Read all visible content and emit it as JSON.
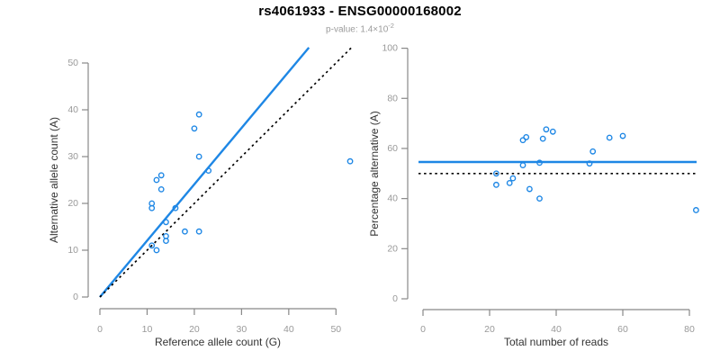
{
  "title": "rs4061933 - ENSG00000168002",
  "subtitle": {
    "text": "p-value: 1.4×10",
    "exponent": "-2"
  },
  "colors": {
    "points": "#1E87E5",
    "fit_line": "#1E87E5",
    "reference_line": "#000000",
    "axis": "#888888",
    "tick_label": "#999999",
    "axis_title": "#333333",
    "title": "#000000",
    "subtitle": "#9b9b9b"
  },
  "chart_data": [
    {
      "type": "scatter",
      "xlabel": "Reference allele count (G)",
      "ylabel": "Alternative allele count (A)",
      "x_ticks": [
        0,
        10,
        20,
        30,
        40,
        50
      ],
      "y_ticks": [
        0,
        10,
        20,
        30,
        40,
        50
      ],
      "xlim": [
        0,
        55
      ],
      "ylim": [
        0,
        53.3
      ],
      "grid": false,
      "legend": "none",
      "points": [
        [
          21,
          39
        ],
        [
          20,
          36
        ],
        [
          21,
          30
        ],
        [
          23,
          27
        ],
        [
          13,
          26
        ],
        [
          12,
          25
        ],
        [
          13,
          23
        ],
        [
          11,
          20
        ],
        [
          11,
          19
        ],
        [
          16,
          19
        ],
        [
          14,
          16
        ],
        [
          18,
          14
        ],
        [
          21,
          14
        ],
        [
          14,
          13
        ],
        [
          14,
          12
        ],
        [
          11,
          11
        ],
        [
          12,
          10
        ],
        [
          53,
          29
        ]
      ],
      "lines": [
        {
          "name": "fit-line",
          "style": "solid",
          "color": "#1E87E5",
          "slope": 1.204,
          "intercept": 0
        },
        {
          "name": "identity-line",
          "style": "dotted",
          "color": "#000000",
          "slope": 1,
          "intercept": 0
        }
      ]
    },
    {
      "type": "scatter",
      "xlabel": "Total number of reads",
      "ylabel": "Percentage alternative (A)",
      "x_ticks": [
        0,
        20,
        40,
        60,
        80
      ],
      "y_ticks": [
        0,
        20,
        40,
        60,
        80,
        100
      ],
      "xlim": [
        0,
        83
      ],
      "ylim": [
        0,
        100
      ],
      "grid": false,
      "legend": "none",
      "points": [
        [
          60,
          65.0
        ],
        [
          56,
          64.3
        ],
        [
          51,
          58.8
        ],
        [
          50,
          54.0
        ],
        [
          39,
          66.7
        ],
        [
          37,
          67.6
        ],
        [
          36,
          63.9
        ],
        [
          31,
          64.5
        ],
        [
          30,
          63.3
        ],
        [
          35,
          54.3
        ],
        [
          30,
          53.3
        ],
        [
          32,
          43.8
        ],
        [
          35,
          40.0
        ],
        [
          27,
          48.1
        ],
        [
          26,
          46.2
        ],
        [
          22,
          50.0
        ],
        [
          22,
          45.5
        ],
        [
          82,
          35.4
        ]
      ],
      "lines": [
        {
          "name": "mean-percentage-line",
          "style": "solid",
          "color": "#1E87E5",
          "y": 54.6
        },
        {
          "name": "null-50pct-line",
          "style": "dotted",
          "color": "#000000",
          "y": 50
        }
      ]
    }
  ]
}
